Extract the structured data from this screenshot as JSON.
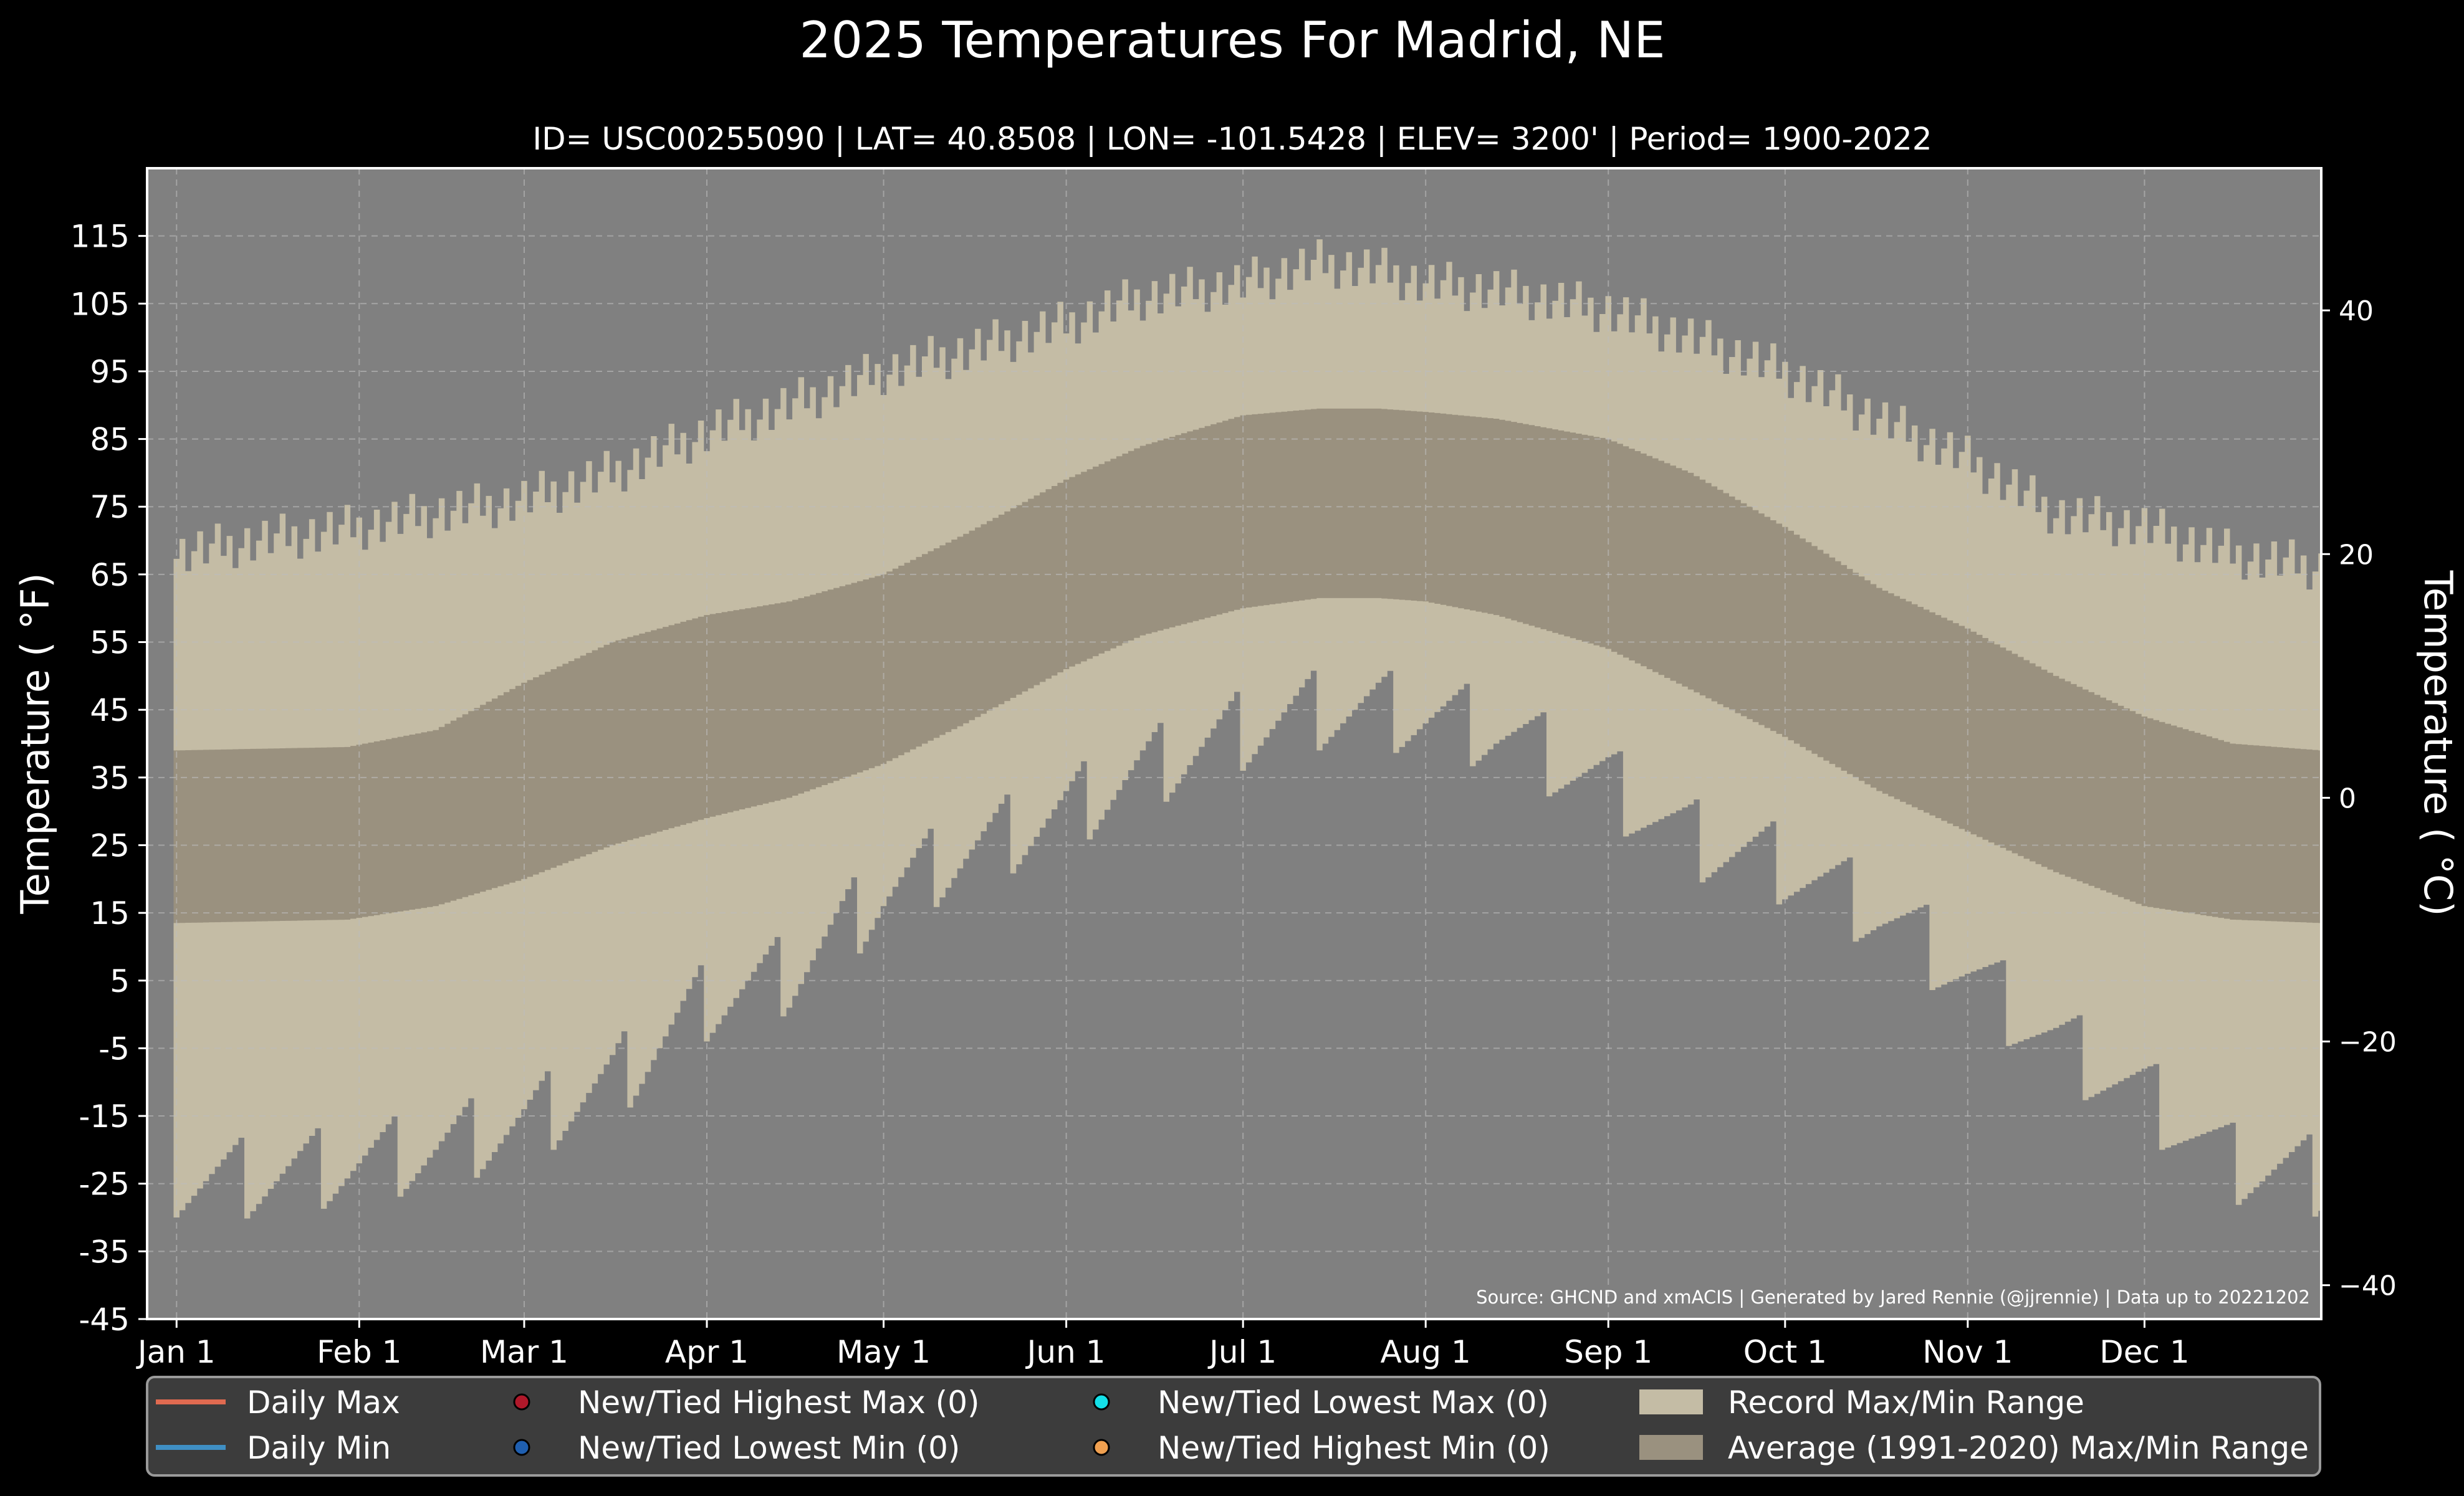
{
  "chart_data": {
    "type": "area",
    "title": "2025 Temperatures For Madrid, NE",
    "subtitle": "ID= USC00255090 | LAT= 40.8508 | LON= -101.5428 | ELEV= 3200' | Period= 1900-2022",
    "ylabel_left": "Temperature ( °F)",
    "ylabel_right": "Temperature ( °C)",
    "source": "Source: GHCND and xmACIS | Generated by Jared Rennie (@jjrennie) | Data up to 20221202",
    "ylim_f": [
      -45,
      125
    ],
    "xlim_day": [
      -4,
      365
    ],
    "y_ticks_f": [
      "115",
      "105",
      "95",
      "85",
      "75",
      "65",
      "55",
      "45",
      "35",
      "25",
      "15",
      "5",
      "-5",
      "-15",
      "-25",
      "-35",
      "-45"
    ],
    "y_ticks_c": [
      "40",
      "20",
      "0",
      "−20",
      "−40"
    ],
    "x_ticks": [
      {
        "label": "Jan 1",
        "day": 1
      },
      {
        "label": "Feb 1",
        "day": 32
      },
      {
        "label": "Mar 1",
        "day": 60
      },
      {
        "label": "Apr 1",
        "day": 91
      },
      {
        "label": "May 1",
        "day": 121
      },
      {
        "label": "Jun 1",
        "day": 152
      },
      {
        "label": "Jul 1",
        "day": 182
      },
      {
        "label": "Aug 1",
        "day": 213
      },
      {
        "label": "Sep 1",
        "day": 244
      },
      {
        "label": "Oct 1",
        "day": 274
      },
      {
        "label": "Nov 1",
        "day": 305
      },
      {
        "label": "Dec 1",
        "day": 335
      }
    ],
    "grid": true,
    "colors": {
      "background": "#000000",
      "plot_background": "#808080",
      "record_range": "#c4bca5",
      "average_range": "#9a917f",
      "daily_max": "#e06a50",
      "daily_min": "#3f8fc4",
      "legend_background": "#3c3c3c"
    },
    "legend": {
      "placement": "bottom",
      "items": [
        {
          "label": "Daily Max",
          "kind": "line",
          "color": "#e06a50"
        },
        {
          "label": "New/Tied Highest Max (0)",
          "kind": "dot",
          "color": "#b0182a"
        },
        {
          "label": "New/Tied Lowest Max (0)",
          "kind": "dot",
          "color": "#14e0e8"
        },
        {
          "label": "Record Max/Min Range",
          "kind": "patch",
          "color": "#c4bca5"
        },
        {
          "label": "Daily Min",
          "kind": "line",
          "color": "#3f8fc4"
        },
        {
          "label": "New/Tied Lowest Min (0)",
          "kind": "dot",
          "color": "#1f5fb0"
        },
        {
          "label": "New/Tied Highest Min (0)",
          "kind": "dot",
          "color": "#f0a050"
        },
        {
          "label": "Average (1991-2020) Max/Min Range",
          "kind": "patch",
          "color": "#9a917f"
        }
      ]
    },
    "series": [
      {
        "name": "Record Max/Min Range",
        "type": "band",
        "x": [
          1,
          15,
          32,
          45,
          60,
          75,
          91,
          105,
          121,
          135,
          152,
          165,
          182,
          195,
          205,
          213,
          225,
          244,
          258,
          274,
          290,
          305,
          320,
          335,
          350,
          365
        ],
        "high": [
          68,
          70,
          72,
          74,
          76,
          80,
          86,
          90,
          95,
          98,
          102,
          106,
          108,
          111,
          110,
          108,
          107,
          104,
          100,
          95,
          88,
          82,
          74,
          72,
          68,
          66
        ],
        "low": [
          -25,
          -24,
          -22,
          -20,
          -16,
          -10,
          2,
          6,
          18,
          24,
          30,
          36,
          42,
          45,
          45,
          44,
          42,
          34,
          26,
          22,
          15,
          6,
          -4,
          -12,
          -22,
          -24
        ]
      },
      {
        "name": "Average (1991-2020) Max/Min Range",
        "type": "band",
        "x": [
          1,
          30,
          45,
          60,
          75,
          91,
          105,
          121,
          135,
          152,
          165,
          182,
          195,
          205,
          213,
          225,
          244,
          258,
          274,
          290,
          305,
          320,
          335,
          350,
          365
        ],
        "high": [
          39,
          39.5,
          42,
          49,
          55,
          59,
          61,
          65,
          71,
          79,
          84,
          88.5,
          89.5,
          89.5,
          89,
          88,
          85,
          80,
          72,
          63,
          57,
          50,
          44,
          40,
          39
        ],
        "low": [
          13.5,
          14,
          16,
          20,
          25,
          29,
          32,
          37,
          43,
          51,
          56,
          60,
          61.5,
          61.5,
          61,
          59,
          54,
          48,
          41,
          33,
          27,
          21,
          16,
          14,
          13.5
        ]
      }
    ]
  }
}
